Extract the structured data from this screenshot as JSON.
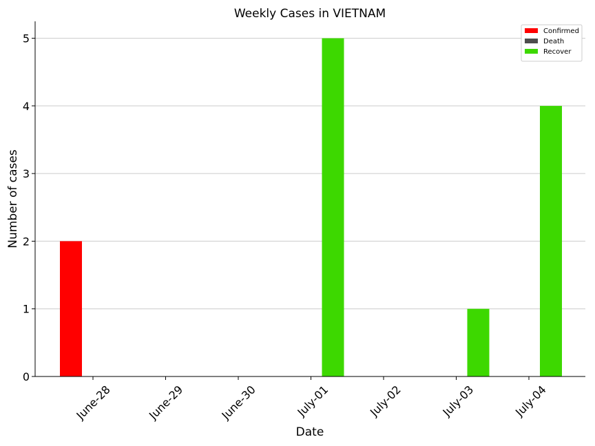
{
  "chart_data": {
    "type": "bar",
    "title": "Weekly Cases in VIETNAM",
    "xlabel": "Date",
    "ylabel": "Number of cases",
    "categories": [
      "June-28",
      "June-29",
      "June-30",
      "July-01",
      "July-02",
      "July-03",
      "July-04"
    ],
    "series": [
      {
        "name": "Confirmed",
        "color": "#ff0000",
        "values": [
          2,
          0,
          0,
          0,
          0,
          0,
          0
        ]
      },
      {
        "name": "Death",
        "color": "#4d4d4d",
        "values": [
          0,
          0,
          0,
          0,
          0,
          0,
          0
        ]
      },
      {
        "name": "Recover",
        "color": "#3dd800",
        "values": [
          0,
          0,
          0,
          5,
          0,
          1,
          4
        ]
      }
    ],
    "yticks": [
      0,
      1,
      2,
      3,
      4,
      5
    ],
    "ylim": [
      0,
      5.25
    ],
    "grid": "horizontal",
    "legend": "top-right"
  }
}
